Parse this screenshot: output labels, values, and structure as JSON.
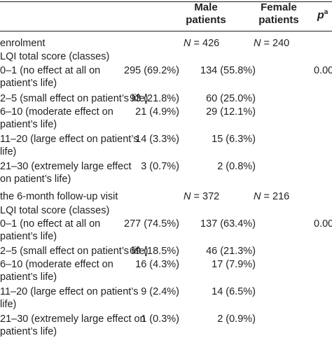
{
  "header": {
    "male_line1": "Male",
    "male_line2": "patients",
    "female_line1": "Female",
    "female_line2": "patients",
    "p_label": "p",
    "p_sup": "a"
  },
  "section1": {
    "title": "enrolment",
    "n_male_prefix": "N",
    "n_male_value": "= 426",
    "n_female_prefix": "N",
    "n_female_value": "= 240",
    "subtitle": "LQI total score (classes)",
    "rows": [
      {
        "line1": "0–1 (no effect at all on",
        "line2": "patient’s life)",
        "male": "295 (69.2%)",
        "female": "134 (55.8%)",
        "p": "0.00"
      },
      {
        "line1": "2–5 (small effect on patient’s life)",
        "line2": "",
        "male": "93 (21.8%)",
        "female": "60 (25.0%)",
        "p": ""
      },
      {
        "line1": "6–10 (moderate effect on",
        "line2": "patient’s life)",
        "male": "21 (4.9%)",
        "female": "29 (12.1%)",
        "p": ""
      },
      {
        "line1": "11–20 (large effect on patient’s",
        "line2": "life)",
        "male": "14 (3.3%)",
        "female": "15 (6.3%)",
        "p": ""
      },
      {
        "line1": "21–30 (extremely large effect",
        "line2": "on patient’s life)",
        "male": "3 (0.7%)",
        "female": "2 (0.8%)",
        "p": ""
      }
    ]
  },
  "section2": {
    "title": "the 6-month follow-up visit",
    "n_male_prefix": "N",
    "n_male_value": "= 372",
    "n_female_prefix": "N",
    "n_female_value": "= 216",
    "subtitle": "LQI total score (classes)",
    "rows": [
      {
        "line1": "0–1 (no effect at all on",
        "line2": "patient’s life)",
        "male": "277 (74.5%)",
        "female": "137 (63.4%)",
        "p": "0.00"
      },
      {
        "line1": "2–5 (small effect on patient’s life)",
        "line2": "",
        "male": "69 (18.5%)",
        "female": "46 (21.3%)",
        "p": ""
      },
      {
        "line1": "6–10 (moderate effect on",
        "line2": "patient’s life)",
        "male": "16 (4.3%)",
        "female": "17 (7.9%)",
        "p": ""
      },
      {
        "line1": "11–20 (large effect on patient’s",
        "line2": "life)",
        "male": "9 (2.4%)",
        "female": "14 (6.5%)",
        "p": ""
      },
      {
        "line1": "21–30 (extremely large effect on",
        "line2": "patient’s life)",
        "male": "1 (0.3%)",
        "female": "2 (0.9%)",
        "p": ""
      }
    ]
  }
}
